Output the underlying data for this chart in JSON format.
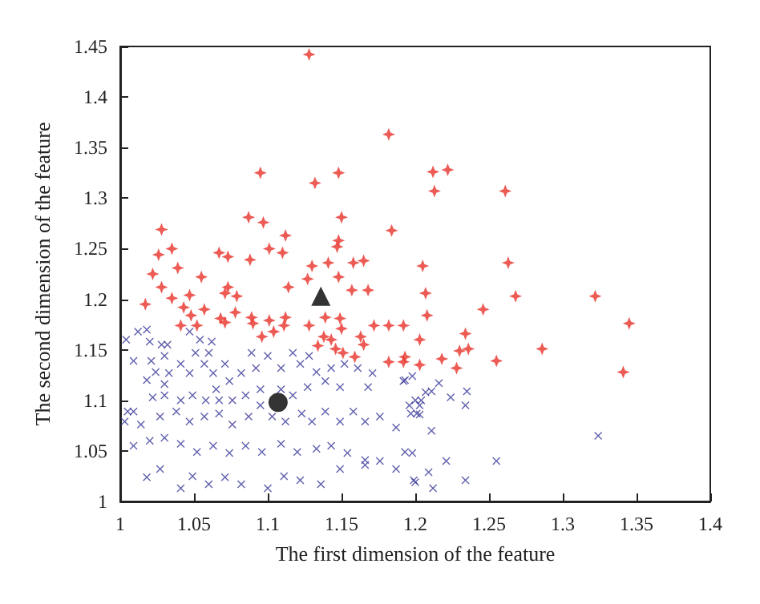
{
  "chart_data": {
    "type": "scatter",
    "xlabel": "The first dimension of the feature",
    "ylabel": "The second dimension of the feature",
    "xlim": [
      1,
      1.4
    ],
    "xticks": [
      1,
      1.05,
      1.1,
      1.15,
      1.2,
      1.25,
      1.3,
      1.35,
      1.4
    ],
    "ylim": [
      1,
      1.45
    ],
    "yticks": [
      1,
      1.05,
      1.1,
      1.15,
      1.2,
      1.25,
      1.3,
      1.35,
      1.4,
      1.45
    ],
    "series": [
      {
        "color": "#e8322b",
        "marker": "star",
        "x": [
          1.128,
          1.182,
          1.095,
          1.132,
          1.148,
          1.212,
          1.222,
          1.213,
          1.261,
          1.087,
          1.097,
          1.15,
          1.028,
          1.112,
          1.184,
          1.026,
          1.035,
          1.067,
          1.073,
          1.088,
          1.101,
          1.11,
          1.147,
          1.148,
          1.13,
          1.141,
          1.158,
          1.165,
          1.205,
          1.263,
          1.022,
          1.039,
          1.055,
          1.028,
          1.073,
          1.071,
          1.079,
          1.114,
          1.127,
          1.148,
          1.157,
          1.168,
          1.017,
          1.035,
          1.047,
          1.043,
          1.048,
          1.057,
          1.068,
          1.071,
          1.078,
          1.089,
          1.09,
          1.101,
          1.111,
          1.104,
          1.096,
          1.112,
          1.128,
          1.139,
          1.149,
          1.15,
          1.138,
          1.134,
          1.143,
          1.146,
          1.151,
          1.159,
          1.163,
          1.172,
          1.182,
          1.192,
          1.203,
          1.182,
          1.192,
          1.203,
          1.041,
          1.052,
          1.165,
          1.207,
          1.268,
          1.322,
          1.345,
          1.246,
          1.208,
          1.234,
          1.286,
          1.23,
          1.236,
          1.255,
          1.218,
          1.228,
          1.193,
          1.341
        ],
        "values": [
          1.442,
          1.363,
          1.325,
          1.315,
          1.325,
          1.326,
          1.328,
          1.307,
          1.307,
          1.281,
          1.276,
          1.281,
          1.269,
          1.263,
          1.268,
          1.244,
          1.25,
          1.246,
          1.242,
          1.239,
          1.25,
          1.246,
          1.252,
          1.258,
          1.233,
          1.236,
          1.236,
          1.238,
          1.233,
          1.236,
          1.225,
          1.231,
          1.222,
          1.212,
          1.212,
          1.206,
          1.203,
          1.212,
          1.22,
          1.222,
          1.209,
          1.209,
          1.195,
          1.201,
          1.204,
          1.192,
          1.184,
          1.19,
          1.181,
          1.177,
          1.187,
          1.182,
          1.176,
          1.179,
          1.174,
          1.168,
          1.163,
          1.182,
          1.174,
          1.182,
          1.181,
          1.171,
          1.163,
          1.154,
          1.16,
          1.151,
          1.147,
          1.143,
          1.163,
          1.174,
          1.174,
          1.174,
          1.16,
          1.138,
          1.138,
          1.135,
          1.174,
          1.174,
          1.155,
          1.206,
          1.203,
          1.203,
          1.176,
          1.19,
          1.184,
          1.166,
          1.151,
          1.149,
          1.151,
          1.139,
          1.141,
          1.132,
          1.143,
          1.128
        ]
      },
      {
        "color": "#3a3a9a",
        "marker": "cross",
        "x": [
          1.004,
          1.012,
          1.018,
          1.02,
          1.028,
          1.032,
          1.047,
          1.054,
          1.051,
          1.062,
          1.06,
          1.009,
          1.021,
          1.03,
          1.024,
          1.018,
          1.033,
          1.03,
          1.041,
          1.047,
          1.057,
          1.063,
          1.071,
          1.074,
          1.065,
          1.082,
          1.089,
          1.092,
          1.1,
          1.109,
          1.117,
          1.122,
          1.128,
          1.133,
          1.143,
          1.152,
          1.161,
          1.171,
          1.139,
          1.149,
          1.168,
          1.127,
          1.117,
          1.109,
          1.095,
          1.085,
          1.076,
          1.067,
          1.058,
          1.049,
          1.041,
          1.03,
          1.022,
          1.009,
          1.014,
          1.027,
          1.038,
          1.047,
          1.057,
          1.067,
          1.076,
          1.087,
          1.095,
          1.103,
          1.112,
          1.123,
          1.13,
          1.139,
          1.149,
          1.158,
          1.166,
          1.176,
          1.187,
          1.196,
          1.201,
          1.204,
          1.192,
          1.009,
          1.02,
          1.03,
          1.041,
          1.052,
          1.063,
          1.074,
          1.085,
          1.096,
          1.109,
          1.12,
          1.133,
          1.143,
          1.154,
          1.166,
          1.176,
          1.187,
          1.199,
          1.018,
          1.027,
          1.041,
          1.049,
          1.06,
          1.071,
          1.082,
          1.1,
          1.111,
          1.122,
          1.136,
          1.149,
          1.166,
          1.005,
          1.003,
          1.193,
          1.198,
          1.216,
          1.207,
          1.211,
          1.224,
          1.235,
          1.234,
          1.2,
          1.203,
          1.197,
          1.203,
          1.211,
          1.324,
          1.193,
          1.198,
          1.221,
          1.255,
          1.209,
          1.2,
          1.212,
          1.234
        ],
        "values": [
          1.16,
          1.168,
          1.17,
          1.158,
          1.155,
          1.155,
          1.168,
          1.16,
          1.147,
          1.158,
          1.147,
          1.139,
          1.139,
          1.144,
          1.128,
          1.12,
          1.127,
          1.116,
          1.136,
          1.127,
          1.136,
          1.127,
          1.136,
          1.119,
          1.111,
          1.127,
          1.147,
          1.132,
          1.144,
          1.132,
          1.147,
          1.136,
          1.144,
          1.128,
          1.132,
          1.136,
          1.132,
          1.127,
          1.119,
          1.113,
          1.113,
          1.113,
          1.105,
          1.111,
          1.111,
          1.105,
          1.1,
          1.1,
          1.1,
          1.105,
          1.1,
          1.105,
          1.103,
          1.089,
          1.076,
          1.084,
          1.089,
          1.079,
          1.084,
          1.087,
          1.076,
          1.084,
          1.095,
          1.084,
          1.079,
          1.087,
          1.079,
          1.089,
          1.079,
          1.089,
          1.079,
          1.084,
          1.073,
          1.095,
          1.087,
          1.1,
          1.119,
          1.055,
          1.06,
          1.063,
          1.057,
          1.049,
          1.055,
          1.048,
          1.055,
          1.049,
          1.057,
          1.049,
          1.052,
          1.055,
          1.048,
          1.041,
          1.04,
          1.032,
          1.021,
          1.024,
          1.032,
          1.013,
          1.025,
          1.017,
          1.024,
          1.017,
          1.013,
          1.025,
          1.021,
          1.017,
          1.032,
          1.036,
          1.089,
          1.079,
          1.12,
          1.124,
          1.117,
          1.108,
          1.109,
          1.103,
          1.109,
          1.095,
          1.1,
          1.095,
          1.087,
          1.086,
          1.07,
          1.065,
          1.049,
          1.048,
          1.04,
          1.04,
          1.029,
          1.019,
          1.013,
          1.021
        ]
      },
      {
        "color": "#000000",
        "marker": "triangle",
        "x": [
          1.136
        ],
        "values": [
          1.203
        ]
      },
      {
        "color": "#000000",
        "marker": "circle",
        "x": [
          1.107
        ],
        "values": [
          1.098
        ]
      }
    ]
  }
}
